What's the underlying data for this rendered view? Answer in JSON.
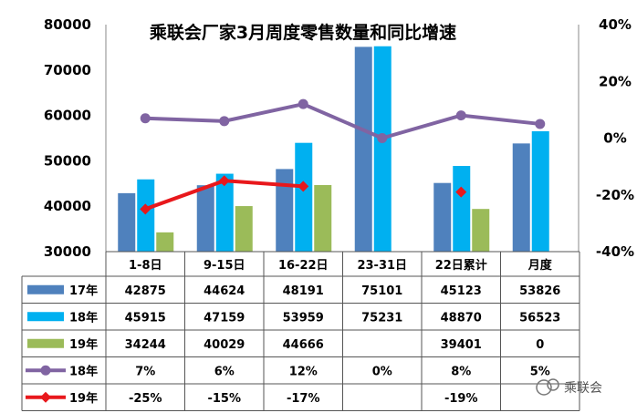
{
  "chart_data": {
    "type": "bar",
    "title": "乘联会厂家3月周度零售数量和同比增速",
    "categories": [
      "1-8日",
      "9-15日",
      "16-22日",
      "23-31日",
      "22日累计",
      "月度"
    ],
    "ylim": [
      30000,
      80000
    ],
    "y_ticks": [
      "80000",
      "70000",
      "60000",
      "50000",
      "40000",
      "30000"
    ],
    "y2lim": [
      -40,
      40
    ],
    "y2_ticks": [
      "40%",
      "20%",
      "0%",
      "-20%",
      "-40%"
    ],
    "series": [
      {
        "name": "17年",
        "kind": "bar",
        "color": "#4f81bd",
        "values": [
          42875,
          44624,
          48191,
          75101,
          45123,
          53826
        ],
        "labels": [
          "42875",
          "44624",
          "48191",
          "75101",
          "45123",
          "53826"
        ]
      },
      {
        "name": "18年",
        "kind": "bar",
        "color": "#00b0f0",
        "values": [
          45915,
          47159,
          53959,
          75231,
          48870,
          56523
        ],
        "labels": [
          "45915",
          "47159",
          "53959",
          "75231",
          "48870",
          "56523"
        ]
      },
      {
        "name": "19年",
        "kind": "bar",
        "color": "#9bbb59",
        "values": [
          34244,
          40029,
          44666,
          null,
          39401,
          0
        ],
        "labels": [
          "34244",
          "40029",
          "44666",
          "",
          "39401",
          "0"
        ]
      },
      {
        "name": "18年",
        "kind": "line",
        "color": "#8064a2",
        "values": [
          7,
          6,
          12,
          0,
          8,
          5
        ],
        "labels": [
          "7%",
          "6%",
          "12%",
          "0%",
          "8%",
          "5%"
        ]
      },
      {
        "name": "19年",
        "kind": "line",
        "color": "#e8181c",
        "values": [
          -25,
          -15,
          -17,
          null,
          -19,
          null
        ],
        "labels": [
          "-25%",
          "-15%",
          "-17%",
          "",
          "-19%",
          ""
        ]
      }
    ],
    "grid": false,
    "legend": "data-table"
  },
  "watermark": "乘联会"
}
